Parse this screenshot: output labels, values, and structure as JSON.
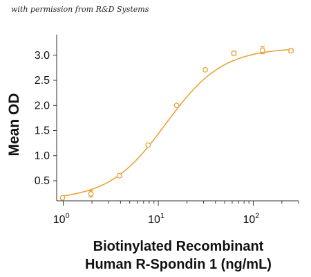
{
  "credit": "with permission from R&D Systems",
  "chart_data": {
    "type": "scatter",
    "title": "",
    "ylabel": "Mean OD",
    "xlabel_lines": [
      "Biotinylated Recombinant",
      "Human R-Spondin 1 (ng/mL)"
    ],
    "x_scale": "log",
    "xlim": [
      0.85,
      300
    ],
    "ylim": [
      0.1,
      3.3
    ],
    "x_ticks": [
      {
        "value": 1,
        "base": "10",
        "exp": "0"
      },
      {
        "value": 10,
        "base": "10",
        "exp": "1"
      },
      {
        "value": 100,
        "base": "10",
        "exp": "2"
      }
    ],
    "y_ticks": [
      {
        "value": 0.5,
        "label": "0.5"
      },
      {
        "value": 1.0,
        "label": "1.0"
      },
      {
        "value": 1.5,
        "label": "1.5"
      },
      {
        "value": 2.0,
        "label": "2.0"
      },
      {
        "value": 2.5,
        "label": "2.5"
      },
      {
        "value": 3.0,
        "label": "3.0"
      }
    ],
    "color": "#E8A33A",
    "points": [
      {
        "x": 0.98,
        "y": 0.16,
        "err": 0.0
      },
      {
        "x": 1.95,
        "y": 0.24,
        "err": 0.06
      },
      {
        "x": 3.9,
        "y": 0.6,
        "err": 0.0
      },
      {
        "x": 7.8,
        "y": 1.21,
        "err": 0.0
      },
      {
        "x": 15.6,
        "y": 2.0,
        "err": 0.0
      },
      {
        "x": 31.25,
        "y": 2.71,
        "err": 0.02
      },
      {
        "x": 62.5,
        "y": 3.04,
        "err": 0.04
      },
      {
        "x": 125,
        "y": 3.1,
        "err": 0.07
      },
      {
        "x": 250,
        "y": 3.09,
        "err": 0.04
      }
    ],
    "fit": {
      "bottom": 0.12,
      "top": 3.15,
      "ec50": 12.0,
      "hill": 1.45
    }
  }
}
